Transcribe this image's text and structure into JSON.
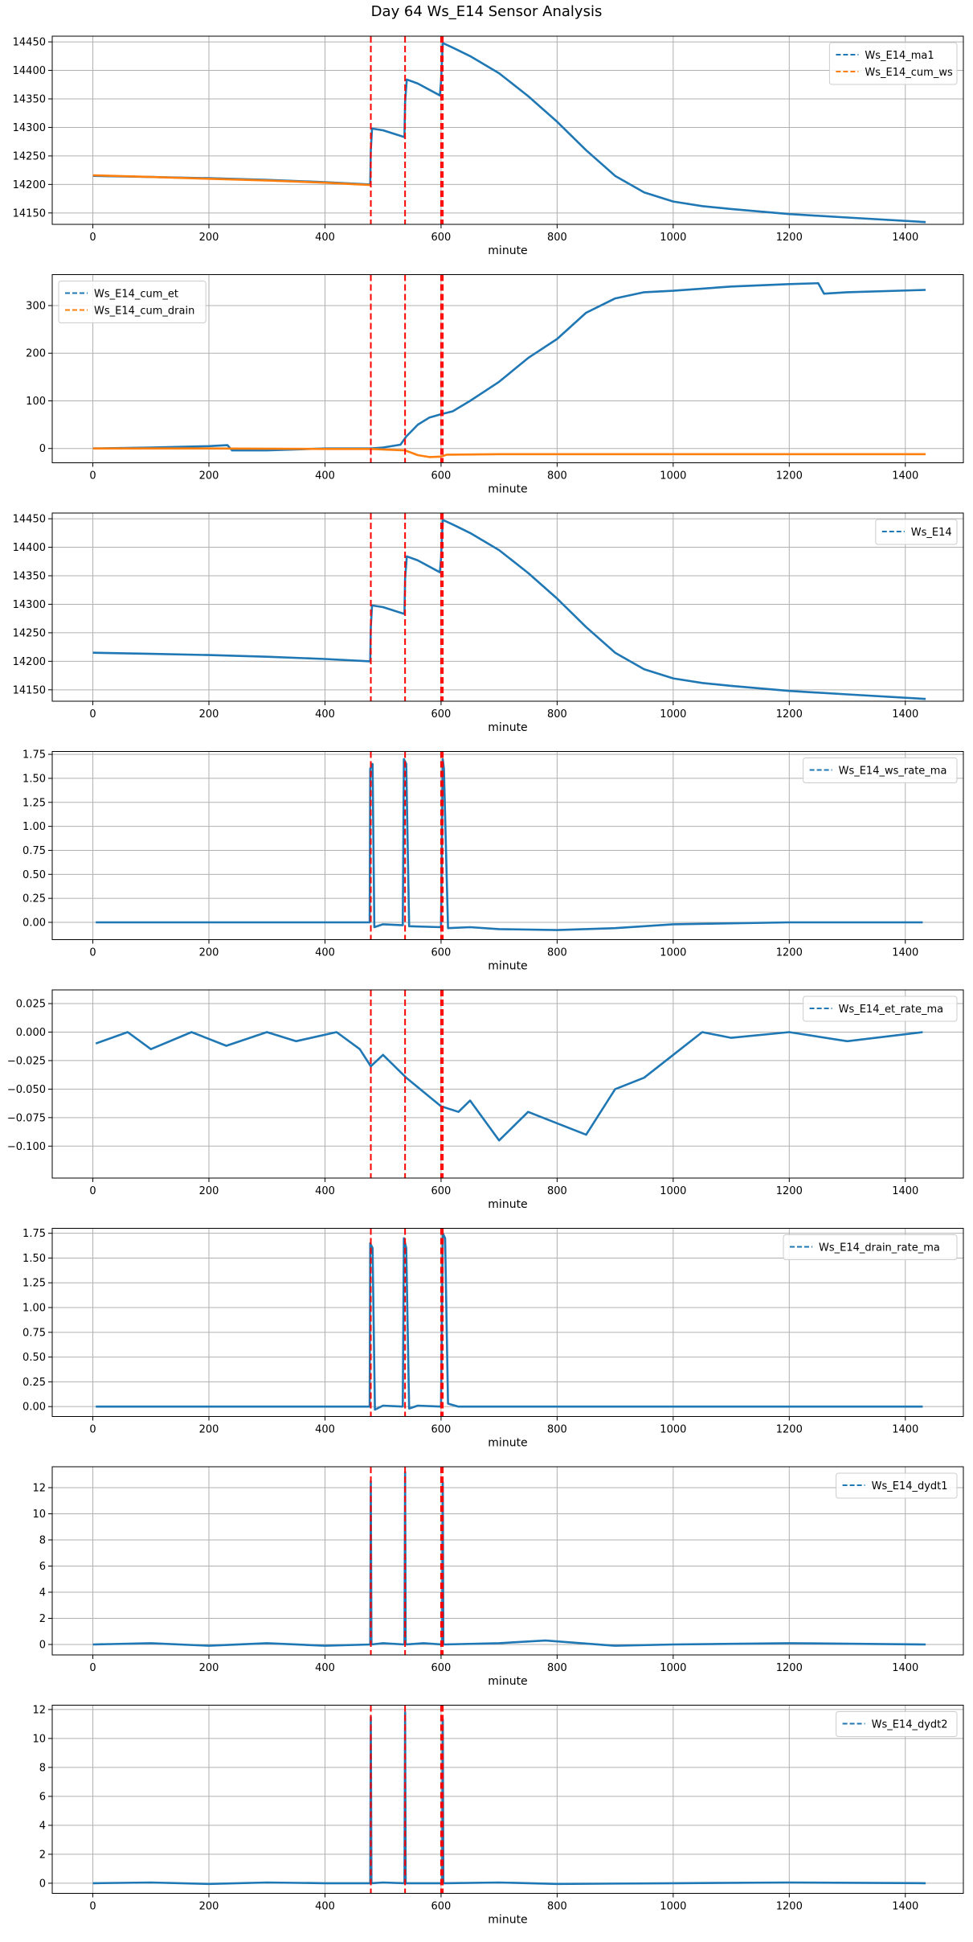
{
  "title": "Day 64 Ws_E14 Sensor Analysis",
  "colors": {
    "blue": "#1f77b4",
    "orange": "#ff7f0e",
    "event": "#ff0000",
    "grid": "#b0b0b0"
  },
  "events": [
    479,
    538,
    600,
    603
  ],
  "chart_data": [
    {
      "type": "line",
      "xlabel": "minute",
      "xlim": [
        -70,
        1500
      ],
      "ylim": [
        14130,
        14460
      ],
      "xticks": [
        0,
        200,
        400,
        600,
        800,
        1000,
        1200,
        1400
      ],
      "xtick_labels": [
        "0",
        "200",
        "400",
        "600",
        "800",
        "1000",
        "1200",
        "1400"
      ],
      "yticks": [
        14150,
        14200,
        14250,
        14300,
        14350,
        14400,
        14450
      ],
      "ytick_labels": [
        "14150",
        "14200",
        "14250",
        "14300",
        "14350",
        "14400",
        "14450"
      ],
      "legend_loc": "upper right",
      "series": [
        {
          "name": "Ws_E14_ma1",
          "color": "#1f77b4",
          "x": [
            0,
            100,
            200,
            300,
            400,
            478,
            479,
            481,
            500,
            537,
            538,
            541,
            560,
            598,
            600,
            603,
            620,
            650,
            700,
            750,
            800,
            850,
            900,
            950,
            1000,
            1050,
            1100,
            1200,
            1300,
            1435
          ],
          "y": [
            14215,
            14213,
            14211,
            14208,
            14204,
            14200,
            14260,
            14298,
            14295,
            14283,
            14345,
            14384,
            14377,
            14356,
            14380,
            14448,
            14440,
            14425,
            14395,
            14355,
            14310,
            14260,
            14215,
            14186,
            14170,
            14162,
            14157,
            14148,
            14142,
            14134
          ]
        },
        {
          "name": "Ws_E14_cum_ws",
          "color": "#ff7f0e",
          "x": [
            0,
            100,
            200,
            300,
            400,
            478
          ],
          "y": [
            14216,
            14213,
            14210,
            14207,
            14203,
            14199
          ]
        }
      ]
    },
    {
      "type": "line",
      "xlabel": "minute",
      "xlim": [
        -70,
        1500
      ],
      "ylim": [
        -30,
        365
      ],
      "xticks": [
        0,
        200,
        400,
        600,
        800,
        1000,
        1200,
        1400
      ],
      "xtick_labels": [
        "0",
        "200",
        "400",
        "600",
        "800",
        "1000",
        "1200",
        "1400"
      ],
      "yticks": [
        0,
        100,
        200,
        300
      ],
      "ytick_labels": [
        "0",
        "100",
        "200",
        "300"
      ],
      "legend_loc": "upper left",
      "series": [
        {
          "name": "Ws_E14_cum_et",
          "color": "#1f77b4",
          "x": [
            0,
            100,
            200,
            232,
            240,
            300,
            400,
            479,
            500,
            530,
            540,
            560,
            580,
            600,
            620,
            650,
            700,
            750,
            800,
            850,
            900,
            950,
            1000,
            1100,
            1200,
            1250,
            1260,
            1300,
            1435
          ],
          "y": [
            0,
            2,
            5,
            7,
            -4,
            -4,
            0,
            0,
            2,
            8,
            25,
            50,
            65,
            72,
            78,
            100,
            140,
            190,
            230,
            285,
            315,
            328,
            331,
            340,
            345,
            347,
            325,
            328,
            333
          ]
        },
        {
          "name": "Ws_E14_cum_drain",
          "color": "#ff7f0e",
          "x": [
            0,
            200,
            400,
            479,
            538,
            560,
            580,
            600,
            610,
            700,
            1000,
            1435
          ],
          "y": [
            0,
            0,
            -1,
            -1,
            -4,
            -14,
            -18,
            -17,
            -13,
            -12,
            -12,
            -12
          ]
        }
      ]
    },
    {
      "type": "line",
      "xlabel": "minute",
      "xlim": [
        -70,
        1500
      ],
      "ylim": [
        14130,
        14460
      ],
      "xticks": [
        0,
        200,
        400,
        600,
        800,
        1000,
        1200,
        1400
      ],
      "xtick_labels": [
        "0",
        "200",
        "400",
        "600",
        "800",
        "1000",
        "1200",
        "1400"
      ],
      "yticks": [
        14150,
        14200,
        14250,
        14300,
        14350,
        14400,
        14450
      ],
      "ytick_labels": [
        "14150",
        "14200",
        "14250",
        "14300",
        "14350",
        "14400",
        "14450"
      ],
      "legend_loc": "upper right",
      "series": [
        {
          "name": "Ws_E14",
          "color": "#1f77b4",
          "x": [
            0,
            100,
            200,
            300,
            400,
            478,
            479,
            481,
            500,
            537,
            538,
            541,
            560,
            598,
            600,
            603,
            620,
            650,
            700,
            750,
            800,
            850,
            900,
            950,
            1000,
            1050,
            1100,
            1200,
            1300,
            1435
          ],
          "y": [
            14215,
            14213,
            14211,
            14208,
            14204,
            14200,
            14260,
            14298,
            14295,
            14283,
            14345,
            14384,
            14377,
            14356,
            14380,
            14448,
            14440,
            14425,
            14395,
            14355,
            14310,
            14260,
            14215,
            14186,
            14170,
            14162,
            14157,
            14148,
            14142,
            14134
          ]
        }
      ]
    },
    {
      "type": "line",
      "xlabel": "minute",
      "xlim": [
        -70,
        1500
      ],
      "ylim": [
        -0.18,
        1.78
      ],
      "xticks": [
        0,
        200,
        400,
        600,
        800,
        1000,
        1200,
        1400
      ],
      "xtick_labels": [
        "0",
        "200",
        "400",
        "600",
        "800",
        "1000",
        "1200",
        "1400"
      ],
      "yticks": [
        0,
        0.25,
        0.5,
        0.75,
        1.0,
        1.25,
        1.5,
        1.75
      ],
      "ytick_labels": [
        "0.00",
        "0.25",
        "0.50",
        "0.75",
        "1.00",
        "1.25",
        "1.50",
        "1.75"
      ],
      "legend_loc": "upper right",
      "series": [
        {
          "name": "Ws_E14_ws_rate_ma",
          "color": "#1f77b4",
          "x": [
            5,
            200,
            400,
            470,
            477,
            478,
            482,
            485,
            500,
            534,
            536,
            540,
            545,
            600,
            603,
            605,
            612,
            650,
            700,
            800,
            900,
            1000,
            1200,
            1430
          ],
          "y": [
            0,
            0,
            0,
            0,
            0,
            1.6,
            1.65,
            -0.05,
            -0.02,
            -0.03,
            1.7,
            1.65,
            -0.04,
            -0.05,
            1.7,
            1.6,
            -0.06,
            -0.05,
            -0.07,
            -0.08,
            -0.06,
            -0.02,
            0,
            0
          ]
        }
      ]
    },
    {
      "type": "line",
      "xlabel": "minute",
      "xlim": [
        -70,
        1500
      ],
      "ylim": [
        -0.128,
        0.037
      ],
      "xticks": [
        0,
        200,
        400,
        600,
        800,
        1000,
        1200,
        1400
      ],
      "xtick_labels": [
        "0",
        "200",
        "400",
        "600",
        "800",
        "1000",
        "1200",
        "1400"
      ],
      "yticks": [
        0.025,
        0,
        -0.025,
        -0.05,
        -0.075,
        -0.1
      ],
      "ytick_labels": [
        "0.025",
        "0.000",
        "−0.025",
        "−0.050",
        "−0.075",
        "−0.100"
      ],
      "legend_loc": "upper right",
      "series": [
        {
          "name": "Ws_E14_et_rate_ma",
          "color": "#1f77b4",
          "x": [
            5,
            60,
            100,
            170,
            230,
            300,
            350,
            420,
            460,
            479,
            500,
            540,
            600,
            630,
            650,
            700,
            750,
            800,
            850,
            900,
            950,
            1000,
            1050,
            1100,
            1200,
            1300,
            1430
          ],
          "y": [
            -0.01,
            0,
            -0.015,
            0,
            -0.012,
            0,
            -0.008,
            0,
            -0.015,
            -0.03,
            -0.02,
            -0.04,
            -0.065,
            -0.07,
            -0.06,
            -0.095,
            -0.07,
            -0.08,
            -0.09,
            -0.05,
            -0.04,
            -0.02,
            0,
            -0.005,
            0,
            -0.008,
            0
          ]
        }
      ]
    },
    {
      "type": "line",
      "xlabel": "minute",
      "xlim": [
        -70,
        1500
      ],
      "ylim": [
        -0.1,
        1.8
      ],
      "xticks": [
        0,
        200,
        400,
        600,
        800,
        1000,
        1200,
        1400
      ],
      "xtick_labels": [
        "0",
        "200",
        "400",
        "600",
        "800",
        "1000",
        "1200",
        "1400"
      ],
      "yticks": [
        0,
        0.25,
        0.5,
        0.75,
        1.0,
        1.25,
        1.5,
        1.75
      ],
      "ytick_labels": [
        "0.00",
        "0.25",
        "0.50",
        "0.75",
        "1.00",
        "1.25",
        "1.50",
        "1.75"
      ],
      "legend_loc": "upper right",
      "series": [
        {
          "name": "Ws_E14_drain_rate_ma",
          "color": "#1f77b4",
          "x": [
            5,
            470,
            477,
            478,
            482,
            486,
            500,
            534,
            536,
            540,
            545,
            560,
            600,
            603,
            607,
            612,
            630,
            650,
            1430
          ],
          "y": [
            0,
            0,
            0,
            1.65,
            1.6,
            -0.03,
            0.01,
            0,
            1.7,
            1.6,
            -0.02,
            0.01,
            0,
            1.75,
            1.7,
            0.03,
            0,
            0,
            0
          ]
        }
      ]
    },
    {
      "type": "line",
      "xlabel": "minute",
      "xlim": [
        -70,
        1500
      ],
      "ylim": [
        -0.8,
        13.6
      ],
      "xticks": [
        0,
        200,
        400,
        600,
        800,
        1000,
        1200,
        1400
      ],
      "xtick_labels": [
        "0",
        "200",
        "400",
        "600",
        "800",
        "1000",
        "1200",
        "1400"
      ],
      "yticks": [
        0,
        2,
        4,
        6,
        8,
        10,
        12
      ],
      "ytick_labels": [
        "0",
        "2",
        "4",
        "6",
        "8",
        "10",
        "12"
      ],
      "legend_loc": "upper right",
      "series": [
        {
          "name": "Ws_E14_dydt1",
          "color": "#1f77b4",
          "x": [
            0,
            100,
            200,
            300,
            400,
            478,
            479,
            480,
            500,
            537,
            538,
            539,
            570,
            602,
            603,
            604,
            700,
            780,
            900,
            1000,
            1200,
            1435
          ],
          "y": [
            0,
            0.1,
            -0.1,
            0.1,
            -0.1,
            0,
            12.5,
            0,
            0.1,
            0,
            13.2,
            0,
            0.1,
            0,
            12.4,
            0,
            0.1,
            0.3,
            -0.1,
            0,
            0.1,
            0
          ]
        }
      ]
    },
    {
      "type": "line",
      "xlabel": "minute",
      "xlim": [
        -70,
        1500
      ],
      "ylim": [
        -0.7,
        12.3
      ],
      "xticks": [
        0,
        200,
        400,
        600,
        800,
        1000,
        1200,
        1400
      ],
      "xtick_labels": [
        "0",
        "200",
        "400",
        "600",
        "800",
        "1000",
        "1200",
        "1400"
      ],
      "yticks": [
        0,
        2,
        4,
        6,
        8,
        10,
        12
      ],
      "ytick_labels": [
        "0",
        "2",
        "4",
        "6",
        "8",
        "10",
        "12"
      ],
      "legend_loc": "upper right",
      "series": [
        {
          "name": "Ws_E14_dydt2",
          "color": "#1f77b4",
          "x": [
            0,
            100,
            200,
            300,
            400,
            478,
            479,
            480,
            500,
            537,
            538,
            539,
            570,
            602,
            603,
            604,
            700,
            800,
            1000,
            1200,
            1435
          ],
          "y": [
            0,
            0.05,
            -0.05,
            0.05,
            0,
            0,
            11.5,
            0,
            0.05,
            0,
            11.8,
            0,
            0,
            0,
            11.3,
            0,
            0.05,
            -0.05,
            0,
            0.05,
            0
          ]
        }
      ]
    }
  ]
}
